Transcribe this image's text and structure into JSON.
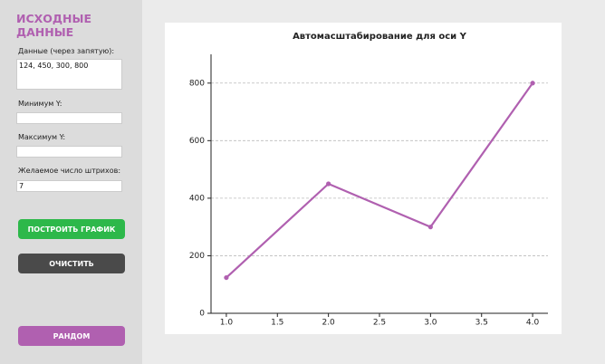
{
  "sidebar": {
    "title": "ИСХОДНЫЕ ДАННЫЕ",
    "fields": [
      {
        "label": "Данные (через запятую):",
        "value": "124, 450, 300, 800"
      },
      {
        "label": "Минимум Y:"
      },
      {
        "label": "Максимум Y:"
      },
      {
        "label": "Желаемое число штрихов:",
        "value": "7"
      }
    ],
    "buttons": [
      "ПОСТРОИТЬ ГРАФИК",
      "ОЧИСТИТЬ",
      "РАНДОМ"
    ]
  },
  "chart_data": {
    "type": "line",
    "title": "Автомасштабирование для оси Y",
    "x": [
      1,
      2,
      3,
      4
    ],
    "values": [
      124,
      450,
      300,
      800
    ],
    "color": "#b060b0",
    "xlim": [
      0.85,
      4.15
    ],
    "xticks": [
      {
        "value": 1,
        "label": "1.0"
      },
      {
        "value": 1.5,
        "label": "1.5"
      },
      {
        "value": 2,
        "label": "2.0"
      },
      {
        "value": 2.5,
        "label": "2.5"
      },
      {
        "value": 3,
        "label": "3.0"
      },
      {
        "value": 3.5,
        "label": "3.5"
      },
      {
        "value": 4,
        "label": "4.0"
      }
    ],
    "ylim": [
      0,
      900
    ],
    "yticks": [
      0,
      200,
      400,
      600,
      800
    ],
    "grid": true
  }
}
